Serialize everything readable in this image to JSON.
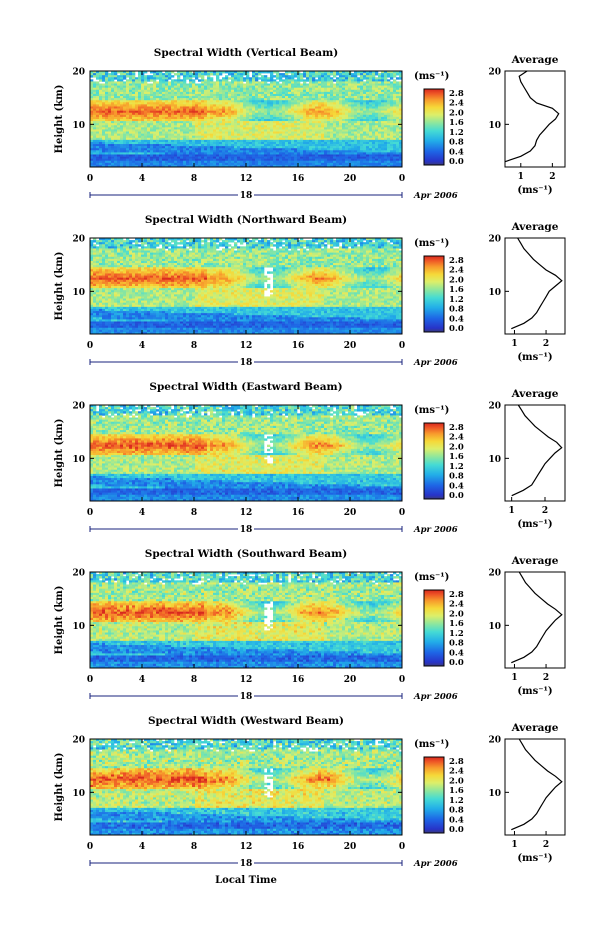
{
  "chart_data": [
    {
      "type": "heatmap",
      "title": "Spectral Width (Vertical Beam)",
      "ylabel": "Height (km)",
      "xlim": [
        0,
        24
      ],
      "ylim": [
        2,
        20
      ],
      "x_ticks": [
        "0",
        "4",
        "8",
        "12",
        "16",
        "20",
        "0"
      ],
      "y_ticks": [
        "20",
        "10"
      ],
      "day_label": "18",
      "date_label": "Apr 2006",
      "colorbar_unit": "(ms⁻¹)",
      "colorbar_ticks": [
        "2.8",
        "2.4",
        "2.0",
        "1.6",
        "1.2",
        "0.8",
        "0.4",
        "0.0"
      ],
      "colorbar_range": [
        0,
        2.8
      ],
      "profile": {
        "title": "Average",
        "xlabel": "(ms⁻¹)",
        "x_ticks": [
          "1",
          "2"
        ],
        "y_ticks": [
          "20",
          "10"
        ],
        "xlim": [
          0.5,
          2.4
        ],
        "height_km": [
          3,
          4,
          5,
          6,
          7,
          8,
          9,
          10,
          11,
          12,
          13,
          14,
          15,
          16,
          17,
          18,
          19,
          20
        ],
        "width": [
          0.5,
          1.0,
          1.3,
          1.45,
          1.5,
          1.6,
          1.75,
          1.9,
          2.1,
          2.2,
          2.0,
          1.5,
          1.3,
          1.2,
          1.1,
          1.0,
          0.95,
          1.2
        ]
      }
    },
    {
      "type": "heatmap",
      "title": "Spectral Width (Northward Beam)",
      "ylabel": "Height (km)",
      "xlim": [
        0,
        24
      ],
      "ylim": [
        2,
        20
      ],
      "x_ticks": [
        "0",
        "4",
        "8",
        "12",
        "16",
        "20",
        "0"
      ],
      "y_ticks": [
        "20",
        "10"
      ],
      "day_label": "18",
      "date_label": "Apr 2006",
      "colorbar_unit": "(ms⁻¹)",
      "colorbar_ticks": [
        "2.8",
        "2.4",
        "2.0",
        "1.6",
        "1.2",
        "0.8",
        "0.4",
        "0.0"
      ],
      "colorbar_range": [
        0,
        2.8
      ],
      "profile": {
        "title": "Average",
        "xlabel": "(ms⁻¹)",
        "x_ticks": [
          "1",
          "2"
        ],
        "y_ticks": [
          "20",
          "10"
        ],
        "xlim": [
          0.7,
          2.6
        ],
        "height_km": [
          3,
          4,
          5,
          6,
          7,
          8,
          9,
          10,
          11,
          12,
          13,
          14,
          15,
          16,
          17,
          18,
          19,
          20
        ],
        "width": [
          0.9,
          1.3,
          1.55,
          1.7,
          1.8,
          1.9,
          2.0,
          2.1,
          2.3,
          2.5,
          2.3,
          2.0,
          1.8,
          1.6,
          1.45,
          1.3,
          1.2,
          1.1
        ]
      }
    },
    {
      "type": "heatmap",
      "title": "Spectral Width (Eastward Beam)",
      "ylabel": "Height (km)",
      "xlim": [
        0,
        24
      ],
      "ylim": [
        2,
        20
      ],
      "x_ticks": [
        "0",
        "4",
        "8",
        "12",
        "16",
        "20",
        "0"
      ],
      "y_ticks": [
        "20",
        "10"
      ],
      "day_label": "18",
      "date_label": "Apr 2006",
      "colorbar_unit": "(ms⁻¹)",
      "colorbar_ticks": [
        "2.8",
        "2.4",
        "2.0",
        "1.6",
        "1.2",
        "0.8",
        "0.4",
        "0.0"
      ],
      "colorbar_range": [
        0,
        2.8
      ],
      "profile": {
        "title": "Average",
        "xlabel": "(ms⁻¹)",
        "x_ticks": [
          "1",
          "2"
        ],
        "y_ticks": [
          "20",
          "10"
        ],
        "xlim": [
          0.8,
          2.6
        ],
        "height_km": [
          3,
          4,
          5,
          6,
          7,
          8,
          9,
          10,
          11,
          12,
          13,
          14,
          15,
          16,
          17,
          18,
          19,
          20
        ],
        "width": [
          1.0,
          1.35,
          1.6,
          1.7,
          1.8,
          1.9,
          2.0,
          2.15,
          2.3,
          2.5,
          2.35,
          2.1,
          1.9,
          1.7,
          1.55,
          1.4,
          1.3,
          1.2
        ]
      }
    },
    {
      "type": "heatmap",
      "title": "Spectral Width (Southward Beam)",
      "ylabel": "Height (km)",
      "xlim": [
        0,
        24
      ],
      "ylim": [
        2,
        20
      ],
      "x_ticks": [
        "0",
        "4",
        "8",
        "12",
        "16",
        "20",
        "0"
      ],
      "y_ticks": [
        "20",
        "10"
      ],
      "day_label": "18",
      "date_label": "Apr 2006",
      "colorbar_unit": "(ms⁻¹)",
      "colorbar_ticks": [
        "2.8",
        "2.4",
        "2.0",
        "1.6",
        "1.2",
        "0.8",
        "0.4",
        "0.0"
      ],
      "colorbar_range": [
        0,
        2.8
      ],
      "profile": {
        "title": "Average",
        "xlabel": "(ms⁻¹)",
        "x_ticks": [
          "1",
          "2"
        ],
        "y_ticks": [
          "20",
          "10"
        ],
        "xlim": [
          0.7,
          2.6
        ],
        "height_km": [
          3,
          4,
          5,
          6,
          7,
          8,
          9,
          10,
          11,
          12,
          13,
          14,
          15,
          16,
          17,
          18,
          19,
          20
        ],
        "width": [
          0.9,
          1.3,
          1.55,
          1.7,
          1.8,
          1.9,
          2.0,
          2.15,
          2.3,
          2.5,
          2.3,
          2.05,
          1.85,
          1.65,
          1.5,
          1.35,
          1.25,
          1.15
        ]
      }
    },
    {
      "type": "heatmap",
      "title": "Spectral Width (Westward Beam)",
      "ylabel": "Height (km)",
      "xlim": [
        0,
        24
      ],
      "ylim": [
        2,
        20
      ],
      "x_ticks": [
        "0",
        "4",
        "8",
        "12",
        "16",
        "20",
        "0"
      ],
      "y_ticks": [
        "20",
        "10"
      ],
      "day_label": "18",
      "date_label": "Apr 2006",
      "xlabel": "Local Time",
      "colorbar_unit": "(ms⁻¹)",
      "colorbar_ticks": [
        "2.8",
        "2.4",
        "2.0",
        "1.6",
        "1.2",
        "0.8",
        "0.4",
        "0.0"
      ],
      "colorbar_range": [
        0,
        2.8
      ],
      "profile": {
        "title": "Average",
        "xlabel": "(ms⁻¹)",
        "x_ticks": [
          "1",
          "2"
        ],
        "y_ticks": [
          "20",
          "10"
        ],
        "xlim": [
          0.7,
          2.6
        ],
        "height_km": [
          3,
          4,
          5,
          6,
          7,
          8,
          9,
          10,
          11,
          12,
          13,
          14,
          15,
          16,
          17,
          18,
          19,
          20
        ],
        "width": [
          0.9,
          1.3,
          1.55,
          1.7,
          1.8,
          1.9,
          2.0,
          2.15,
          2.3,
          2.5,
          2.3,
          2.05,
          1.85,
          1.65,
          1.5,
          1.35,
          1.25,
          1.15
        ]
      }
    }
  ]
}
